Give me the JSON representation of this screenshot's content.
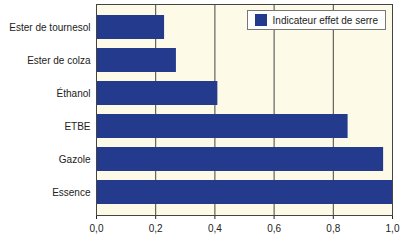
{
  "chart_data": {
    "type": "bar",
    "orientation": "horizontal",
    "categories": [
      "Ester de tournesol",
      "Ester de colza",
      "Éthanol",
      "ETBE",
      "Gazole",
      "Essence"
    ],
    "series": [
      {
        "name": "Indicateur effet de serre",
        "color": "#243a8c",
        "values": [
          0.23,
          0.27,
          0.41,
          0.85,
          0.97,
          1.0
        ]
      }
    ],
    "xlim": [
      0,
      1
    ],
    "xticks": [
      {
        "value": 0,
        "label": "0,0"
      },
      {
        "value": 0.2,
        "label": "0,2"
      },
      {
        "value": 0.4,
        "label": "0,4"
      },
      {
        "value": 0.6,
        "label": "0,6"
      },
      {
        "value": 0.8,
        "label": "0,8"
      },
      {
        "value": 1,
        "label": "1,0"
      }
    ],
    "grid": true,
    "legend": "upper right"
  }
}
